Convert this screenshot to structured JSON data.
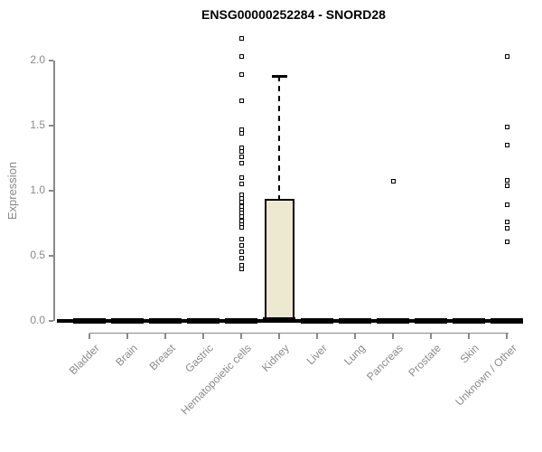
{
  "colors": {
    "box_fill": "#EDE8D0",
    "box_border": "#000000",
    "axis_gray": "#898989",
    "label_gray": "#8a8a8a",
    "title_color": "#000000",
    "outlier_fill": "#ffffff"
  },
  "chart_data": {
    "type": "boxplot",
    "title": "ENSG00000252284 - SNORD28",
    "xlabel": "",
    "ylabel": "Expression",
    "ylim": [
      0,
      2.2
    ],
    "yticks": [
      0.0,
      0.5,
      1.0,
      1.5,
      2.0
    ],
    "ytick_labels": [
      "0.0",
      "0.5",
      "1.0",
      "1.5",
      "2.0"
    ],
    "grid": false,
    "legend": null,
    "categories": [
      "Bladder",
      "Brain",
      "Breast",
      "Gastric",
      "Hematopoietic cells",
      "Kidney",
      "Liver",
      "Lung",
      "Pancreas",
      "Prostate",
      "Skin",
      "Unknown / Other"
    ],
    "boxes": [
      {
        "category": "Bladder",
        "q1": 0,
        "median": 0,
        "q3": 0,
        "whisker_low": 0,
        "whisker_high": 0,
        "outliers": []
      },
      {
        "category": "Brain",
        "q1": 0,
        "median": 0,
        "q3": 0,
        "whisker_low": 0,
        "whisker_high": 0,
        "outliers": []
      },
      {
        "category": "Breast",
        "q1": 0,
        "median": 0,
        "q3": 0,
        "whisker_low": 0,
        "whisker_high": 0,
        "outliers": []
      },
      {
        "category": "Gastric",
        "q1": 0,
        "median": 0,
        "q3": 0,
        "whisker_low": 0,
        "whisker_high": 0,
        "outliers": []
      },
      {
        "category": "Hematopoietic cells",
        "q1": 0,
        "median": 0,
        "q3": 0,
        "whisker_low": 0,
        "whisker_high": 0,
        "outliers": [
          2.17,
          2.03,
          1.89,
          1.69,
          1.47,
          1.44,
          1.33,
          1.3,
          1.26,
          1.21,
          1.1,
          1.05,
          0.97,
          0.94,
          0.91,
          0.88,
          0.85,
          0.83,
          0.8,
          0.77,
          0.74,
          0.72,
          0.63,
          0.58,
          0.53,
          0.48,
          0.43,
          0.4
        ]
      },
      {
        "category": "Kidney",
        "q1": 0.0,
        "median": 0.01,
        "q3": 0.94,
        "whisker_low": 0,
        "whisker_high": 1.88,
        "outliers": []
      },
      {
        "category": "Liver",
        "q1": 0,
        "median": 0,
        "q3": 0,
        "whisker_low": 0,
        "whisker_high": 0,
        "outliers": []
      },
      {
        "category": "Lung",
        "q1": 0,
        "median": 0,
        "q3": 0,
        "whisker_low": 0,
        "whisker_high": 0,
        "outliers": []
      },
      {
        "category": "Pancreas",
        "q1": 0,
        "median": 0,
        "q3": 0,
        "whisker_low": 0,
        "whisker_high": 0,
        "outliers": [
          1.07
        ]
      },
      {
        "category": "Prostate",
        "q1": 0,
        "median": 0,
        "q3": 0,
        "whisker_low": 0,
        "whisker_high": 0,
        "outliers": []
      },
      {
        "category": "Skin",
        "q1": 0,
        "median": 0,
        "q3": 0,
        "whisker_low": 0,
        "whisker_high": 0,
        "outliers": []
      },
      {
        "category": "Unknown / Other",
        "q1": 0,
        "median": 0,
        "q3": 0,
        "whisker_low": 0,
        "whisker_high": 0,
        "outliers": [
          2.03,
          1.49,
          1.35,
          1.08,
          1.04,
          0.89,
          0.76,
          0.71,
          0.61
        ]
      }
    ]
  }
}
